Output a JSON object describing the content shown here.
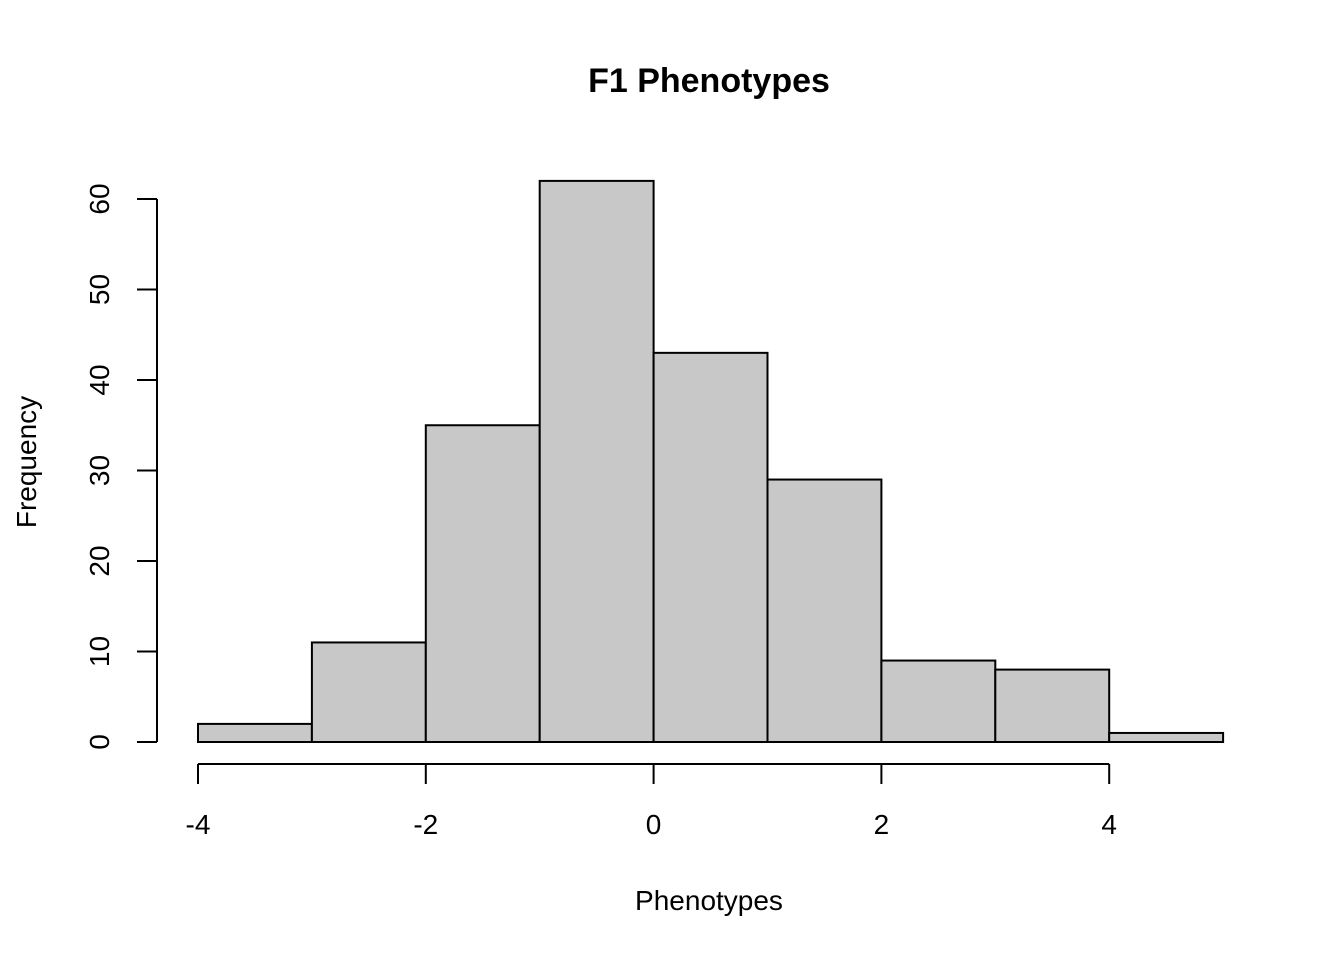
{
  "chart_data": {
    "type": "bar",
    "title": "F1 Phenotypes",
    "xlabel": "Phenotypes",
    "ylabel": "Frequency",
    "bins": [
      {
        "from": -4,
        "to": -3,
        "count": 2
      },
      {
        "from": -3,
        "to": -2,
        "count": 11
      },
      {
        "from": -2,
        "to": -1,
        "count": 35
      },
      {
        "from": -1,
        "to": 0,
        "count": 62
      },
      {
        "from": 0,
        "to": 1,
        "count": 43
      },
      {
        "from": 1,
        "to": 2,
        "count": 29
      },
      {
        "from": 2,
        "to": 3,
        "count": 9
      },
      {
        "from": 3,
        "to": 4,
        "count": 8
      },
      {
        "from": 4,
        "to": 5,
        "count": 1
      }
    ],
    "xticks": [
      "-4",
      "-2",
      "0",
      "2",
      "4"
    ],
    "yticks": [
      "0",
      "10",
      "20",
      "30",
      "40",
      "50",
      "60"
    ],
    "xlim": [
      -4,
      5
    ],
    "ylim": [
      0,
      60
    ],
    "grid": false,
    "bar_color": "#c8c8c8",
    "edge_color": "#000000"
  }
}
